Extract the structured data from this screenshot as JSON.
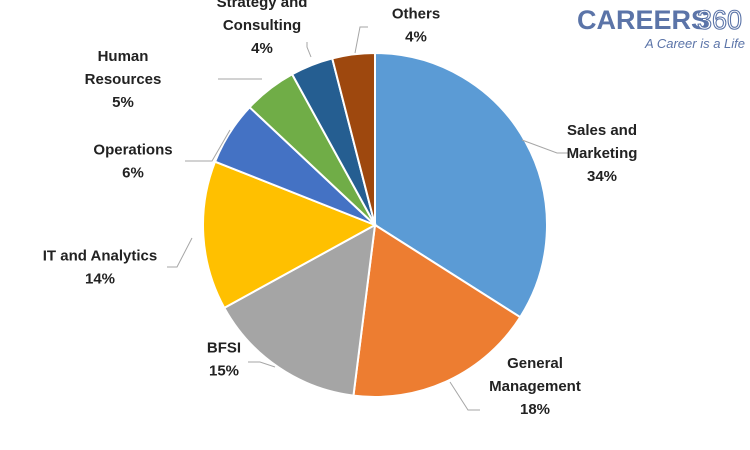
{
  "logo": {
    "brand": "CAREERS",
    "number": "360",
    "tagline": "A Career is a Life"
  },
  "chart_data": {
    "type": "pie",
    "slices": [
      {
        "label_lines": [
          "Sales and",
          "Marketing"
        ],
        "pct_label": "34%",
        "value": 34,
        "color": "#5b9bd5"
      },
      {
        "label_lines": [
          "General",
          "Management"
        ],
        "pct_label": "18%",
        "value": 18,
        "color": "#ed7d31"
      },
      {
        "label_lines": [
          "BFSI"
        ],
        "pct_label": "15%",
        "value": 15,
        "color": "#a5a5a5"
      },
      {
        "label_lines": [
          "IT and Analytics"
        ],
        "pct_label": "14%",
        "value": 14,
        "color": "#ffc000"
      },
      {
        "label_lines": [
          "Operations"
        ],
        "pct_label": "6%",
        "value": 6,
        "color": "#4472c4"
      },
      {
        "label_lines": [
          "Human",
          "Resources"
        ],
        "pct_label": "5%",
        "value": 5,
        "color": "#70ad47"
      },
      {
        "label_lines": [
          "Strategy and",
          "Consulting"
        ],
        "pct_label": "4%",
        "value": 4,
        "color": "#255e91"
      },
      {
        "label_lines": [
          "Others"
        ],
        "pct_label": "4%",
        "value": 4,
        "color": "#9e480e"
      }
    ]
  }
}
